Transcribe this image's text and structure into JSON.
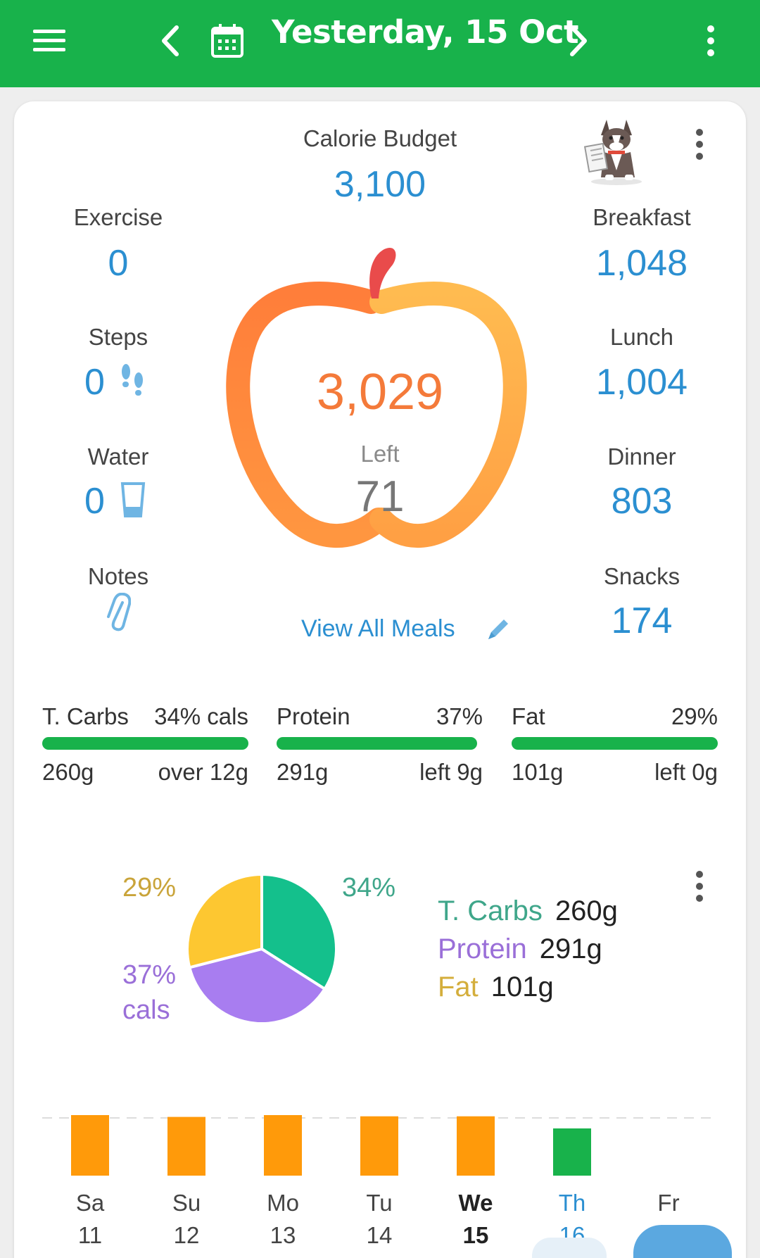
{
  "header": {
    "title": "Yesterday, 15 Oct",
    "icons": [
      "menu-icon",
      "chevron-left-icon",
      "calendar-icon",
      "chevron-right-icon",
      "more-vertical-icon"
    ]
  },
  "summary": {
    "budget_label": "Calorie Budget",
    "budget_value": "3,100",
    "consumed": "3,029",
    "left_label": "Left",
    "left_value": "71",
    "view_all": "View All Meals",
    "left_items": [
      {
        "label": "Exercise",
        "value": "0"
      },
      {
        "label": "Steps",
        "value": "0"
      },
      {
        "label": "Water",
        "value": "0"
      },
      {
        "label": "Notes",
        "value": ""
      }
    ],
    "meals": [
      {
        "label": "Breakfast",
        "value": "1,048"
      },
      {
        "label": "Lunch",
        "value": "1,004"
      },
      {
        "label": "Dinner",
        "value": "803"
      },
      {
        "label": "Snacks",
        "value": "174"
      }
    ]
  },
  "macros": [
    {
      "name": "T. Carbs",
      "pct": "34% cals",
      "grams": "260g",
      "status": "over 12g"
    },
    {
      "name": "Protein",
      "pct": "37%",
      "grams": "291g",
      "status": "left 9g",
      "fill": 0.97
    },
    {
      "name": "Fat",
      "pct": "29%",
      "grams": "101g",
      "status": "left 0g",
      "fill": 1.0
    }
  ],
  "pie": {
    "slices": [
      {
        "name": "T. Carbs",
        "value": 34,
        "color": "#14c08c"
      },
      {
        "name": "Protein",
        "value": 37,
        "color": "#a87df0"
      },
      {
        "name": "Fat",
        "value": 29,
        "color": "#fdc731"
      }
    ],
    "labels": {
      "carbs": "34%",
      "protein": "37%",
      "protein_unit": "cals",
      "fat": "29%"
    },
    "legend": [
      {
        "name": "T. Carbs",
        "grams": "260g",
        "color": "#3fa68a"
      },
      {
        "name": "Protein",
        "grams": "291g",
        "color": "#9a6fd8"
      },
      {
        "name": "Fat",
        "grams": "101g",
        "color": "#d4ae3c"
      }
    ]
  },
  "week": {
    "days": [
      {
        "name": "Sa",
        "num": "11",
        "color": "#ff9a0a",
        "fill": 1.0
      },
      {
        "name": "Su",
        "num": "12",
        "color": "#ff9a0a",
        "fill": 0.97
      },
      {
        "name": "Mo",
        "num": "13",
        "color": "#ff9a0a",
        "fill": 1.0
      },
      {
        "name": "Tu",
        "num": "14",
        "color": "#ff9a0a",
        "fill": 0.98
      },
      {
        "name": "We",
        "num": "15",
        "color": "#ff9a0a",
        "fill": 0.98
      },
      {
        "name": "Th",
        "num": "16",
        "color": "#18b24b",
        "fill": 0.78
      },
      {
        "name": "Fr",
        "num": "",
        "color": "#ff9a0a",
        "fill": 0
      }
    ]
  },
  "colors": {
    "brand": "#18b24b",
    "accent": "#2b8fd1",
    "apple_left": "#ff8438",
    "apple_right": "#ffb04a"
  }
}
